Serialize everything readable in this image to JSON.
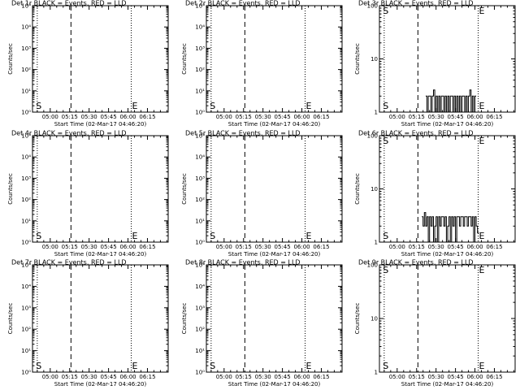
{
  "figure": {
    "background": "#ffffff",
    "foreground": "#000000"
  },
  "panel_defaults": {
    "xtick_labels": [
      "05:00",
      "05:15",
      "05:30",
      "05:45",
      "06:00",
      "06:15"
    ],
    "xtick_minutes": [
      300,
      315,
      330,
      345,
      360,
      375
    ],
    "xlim_minutes": [
      286.33,
      391.0
    ],
    "xlabel": "Start Time (02-Mar-17 04:46:20)",
    "ylabel": "Counts/sec",
    "ylim": [
      1,
      100000
    ],
    "ytick_values": [
      1,
      10,
      100,
      1000,
      10000,
      100000
    ],
    "ytick_labels": [
      "10⁰",
      "10¹",
      "10²",
      "10³",
      "10⁴",
      "10⁵"
    ],
    "y_scale": "log",
    "dotted_lines_minutes": [
      290.0,
      362.5
    ],
    "dashed_line_minutes": 316.0,
    "markers": [
      {
        "label": "S",
        "x_minutes": 289.3,
        "y": 1.3
      },
      {
        "label": "E",
        "x_minutes": 363.4,
        "y": 1.3
      }
    ]
  },
  "chart_data": [
    {
      "type": "line",
      "panel": "1",
      "title": "Det 1r BLACK = Events, RED = LLD",
      "x_minutes": [],
      "y": []
    },
    {
      "type": "line",
      "panel": "2",
      "title": "Det 2r BLACK = Events, RED = LLD",
      "x_minutes": [],
      "y": []
    },
    {
      "type": "line",
      "panel": "3",
      "title": "Det 3r BLACK = Events, RED = LLD",
      "ylim": [
        1,
        100
      ],
      "ytick_values": [
        1,
        10,
        100
      ],
      "ytick_labels": [
        "1",
        "10",
        "100"
      ],
      "x_minutes": [
        322,
        323,
        324,
        325,
        326,
        327,
        328,
        329,
        330,
        331,
        332,
        333,
        334,
        335,
        336,
        337,
        338,
        339,
        340,
        341,
        342,
        343,
        344,
        345,
        346,
        347,
        348,
        349,
        350,
        351,
        352,
        353,
        354,
        355,
        356,
        357,
        358,
        359,
        360
      ],
      "y": [
        2,
        1,
        2,
        2,
        1,
        2,
        2.6,
        1,
        2,
        1,
        2,
        1,
        2,
        2,
        1,
        2,
        1,
        2,
        1,
        2,
        2,
        1,
        2,
        1,
        2,
        1,
        2,
        1,
        2,
        2,
        1,
        2,
        1,
        2,
        2.6,
        1,
        2,
        1,
        2
      ]
    },
    {
      "type": "line",
      "panel": "4",
      "title": "Det 4r BLACK = Events, RED = LLD",
      "x_minutes": [],
      "y": []
    },
    {
      "type": "line",
      "panel": "5",
      "title": "Det 5r BLACK = Events, RED = LLD",
      "x_minutes": [],
      "y": []
    },
    {
      "type": "line",
      "panel": "6",
      "title": "Det 6r BLACK = Events, RED = LLD",
      "ylim": [
        1,
        100
      ],
      "ytick_values": [
        1,
        10,
        100
      ],
      "ytick_labels": [
        "1",
        "10",
        "100"
      ],
      "x_minutes": [
        319,
        320,
        321,
        322,
        323,
        324,
        325,
        326,
        327,
        328,
        329,
        330,
        331,
        332,
        333,
        334,
        335,
        336,
        337,
        338,
        339,
        340,
        341,
        342,
        343,
        344,
        345,
        346,
        347,
        348,
        349,
        350,
        351,
        352,
        353,
        354,
        355,
        356,
        357,
        358,
        359,
        360,
        361,
        362
      ],
      "y": [
        3,
        2,
        3.6,
        2,
        3,
        1,
        3,
        2,
        3,
        1,
        2,
        3,
        1,
        3,
        2,
        3,
        3,
        2,
        3,
        1,
        2,
        3,
        1,
        3,
        2,
        3,
        1,
        3,
        3,
        2,
        3,
        3,
        2,
        3,
        3,
        2,
        3,
        3,
        2,
        3,
        1,
        3,
        2,
        1.5
      ]
    },
    {
      "type": "line",
      "panel": "7",
      "title": "Det 7r BLACK = Events, RED = LLD",
      "x_minutes": [],
      "y": []
    },
    {
      "type": "line",
      "panel": "8",
      "title": "Det 8r BLACK = Events, RED = LLD",
      "x_minutes": [],
      "y": []
    },
    {
      "type": "line",
      "panel": "9",
      "title": "Det 9r BLACK = Events, RED = LLD",
      "ylim": [
        1,
        100
      ],
      "ytick_values": [
        1,
        10,
        100
      ],
      "ytick_labels": [
        "1",
        "10",
        "100"
      ],
      "x_minutes": [],
      "y": []
    }
  ]
}
